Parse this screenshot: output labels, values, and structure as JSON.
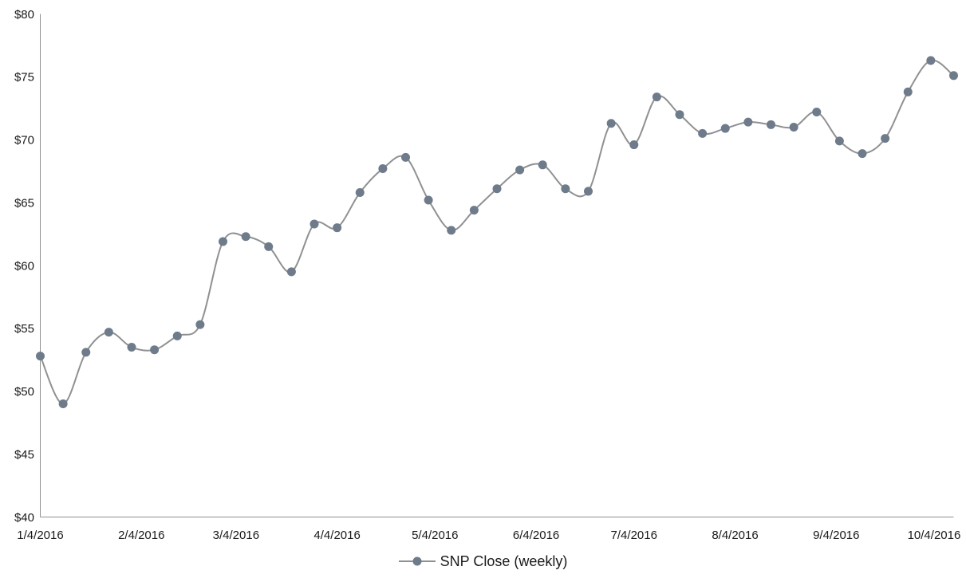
{
  "colors": {
    "line": "#8f9092",
    "marker": "#6e7b8a",
    "axis": "#909090",
    "text": "#1a1a1a"
  },
  "legend": {
    "series_label": "SNP Close (weekly)"
  },
  "chart_data": {
    "type": "line",
    "smooth": true,
    "grid": false,
    "legend_position": "bottom",
    "x_axis": {
      "kind": "date",
      "start_date": "1/4/2016",
      "interval_days": 7,
      "tick_labels": [
        "1/4/2016",
        "2/4/2016",
        "3/4/2016",
        "4/4/2016",
        "5/4/2016",
        "6/4/2016",
        "7/4/2016",
        "8/4/2016",
        "9/4/2016",
        "10/4/2016"
      ]
    },
    "y_axis": {
      "min": 40,
      "max": 80,
      "ticks": [
        {
          "value": 80,
          "label": "$80"
        },
        {
          "value": 75,
          "label": "$75"
        },
        {
          "value": 70,
          "label": "$70"
        },
        {
          "value": 65,
          "label": "$65"
        },
        {
          "value": 60,
          "label": "$60"
        },
        {
          "value": 55,
          "label": "$55"
        },
        {
          "value": 50,
          "label": "$50"
        },
        {
          "value": 45,
          "label": "$45"
        },
        {
          "value": 40,
          "label": "$40"
        }
      ]
    },
    "series": [
      {
        "name": "SNP Close (weekly)",
        "values": [
          52.8,
          49.0,
          53.1,
          54.7,
          53.5,
          53.3,
          54.4,
          55.3,
          61.9,
          62.3,
          61.5,
          59.5,
          63.3,
          63.0,
          65.8,
          67.7,
          68.6,
          65.2,
          62.8,
          64.4,
          66.1,
          67.6,
          68.0,
          66.1,
          65.9,
          71.3,
          69.6,
          73.4,
          72.0,
          70.5,
          70.9,
          71.4,
          71.2,
          71.0,
          72.2,
          69.9,
          68.9,
          70.1,
          73.8,
          76.3,
          75.1
        ]
      }
    ]
  }
}
